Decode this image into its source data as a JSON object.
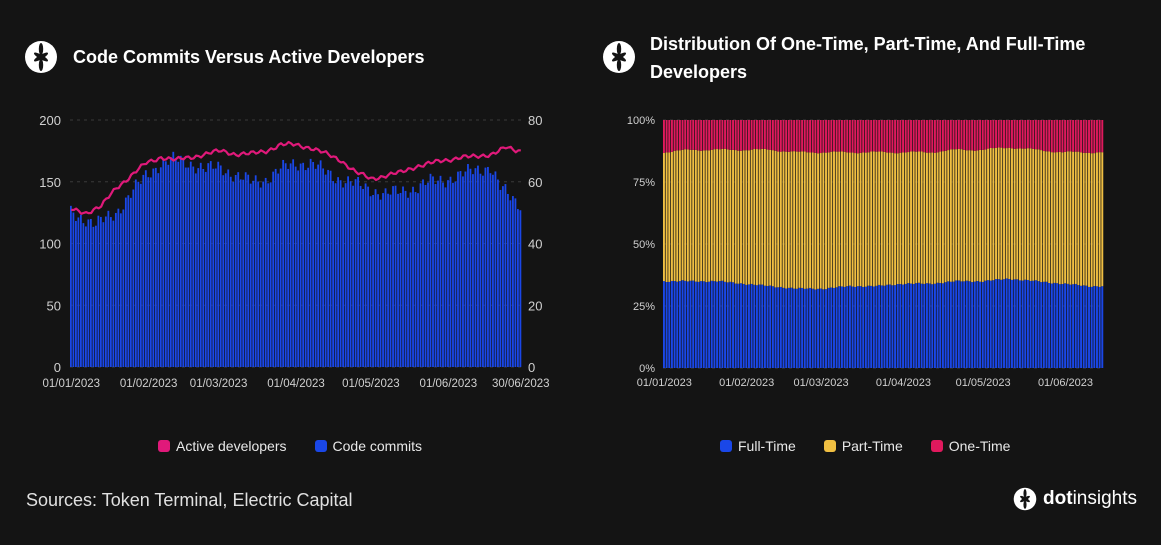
{
  "footer": {
    "sources": "Sources: Token Terminal, Electric Capital"
  },
  "brand": {
    "bold": "dot",
    "light": "insights"
  },
  "colors": {
    "background": "#141414",
    "commits": "#1a47e8",
    "active": "#e0197a",
    "full_time": "#1a47e8",
    "part_time": "#f0bf42",
    "one_time": "#e0195d",
    "grid": "#3a3a3a",
    "tick": "#d0d0d0"
  },
  "left": {
    "title": "Code Commits Versus Active Developers",
    "legend": [
      {
        "label": "Active developers",
        "color": "#e0197a"
      },
      {
        "label": "Code commits",
        "color": "#1a47e8"
      }
    ]
  },
  "right": {
    "title_line1": "Distribution Of One-Time, Part-Time, And Full-Time",
    "title_line2": "Developers",
    "legend": [
      {
        "label": "Full-Time",
        "color": "#1a47e8"
      },
      {
        "label": "Part-Time",
        "color": "#f0bf42"
      },
      {
        "label": "One-Time",
        "color": "#e0195d"
      }
    ]
  },
  "chart_data": [
    {
      "type": "bar",
      "title": "Code Commits Versus Active Developers",
      "x_ticks": [
        "01/01/2023",
        "01/02/2023",
        "01/03/2023",
        "01/04/2023",
        "01/05/2023",
        "01/06/2023",
        "30/06/2023"
      ],
      "y_left_ticks": [
        "0",
        "50",
        "100",
        "150",
        "200"
      ],
      "y_right_ticks": [
        "0",
        "20",
        "40",
        "60",
        "80"
      ],
      "ylim_left": [
        0,
        200
      ],
      "ylim_right": [
        0,
        80
      ],
      "x_range": [
        "01/01/2023",
        "30/06/2023"
      ],
      "grid": true,
      "legend_position": "bottom",
      "commits_anchors": [
        [
          0,
          125
        ],
        [
          6,
          120
        ],
        [
          10,
          115
        ],
        [
          14,
          120
        ],
        [
          18,
          125
        ],
        [
          24,
          140
        ],
        [
          30,
          155
        ],
        [
          36,
          165
        ],
        [
          42,
          168
        ],
        [
          48,
          165
        ],
        [
          54,
          160
        ],
        [
          60,
          162
        ],
        [
          66,
          155
        ],
        [
          72,
          150
        ],
        [
          78,
          152
        ],
        [
          84,
          160
        ],
        [
          90,
          165
        ],
        [
          96,
          165
        ],
        [
          102,
          158
        ],
        [
          108,
          152
        ],
        [
          114,
          148
        ],
        [
          120,
          144
        ],
        [
          126,
          140
        ],
        [
          132,
          142
        ],
        [
          138,
          145
        ],
        [
          144,
          150
        ],
        [
          150,
          152
        ],
        [
          156,
          155
        ],
        [
          162,
          160
        ],
        [
          168,
          162
        ],
        [
          172,
          145
        ],
        [
          176,
          138
        ],
        [
          180,
          132
        ]
      ],
      "active_anchors": [
        [
          0,
          51
        ],
        [
          6,
          50
        ],
        [
          12,
          52
        ],
        [
          18,
          58
        ],
        [
          24,
          62
        ],
        [
          30,
          66
        ],
        [
          36,
          68
        ],
        [
          42,
          67
        ],
        [
          48,
          68
        ],
        [
          54,
          69
        ],
        [
          60,
          70
        ],
        [
          66,
          69
        ],
        [
          72,
          69
        ],
        [
          78,
          70
        ],
        [
          84,
          72
        ],
        [
          90,
          72
        ],
        [
          96,
          71
        ],
        [
          102,
          69
        ],
        [
          108,
          67
        ],
        [
          114,
          63
        ],
        [
          120,
          61
        ],
        [
          126,
          62
        ],
        [
          132,
          63
        ],
        [
          138,
          65
        ],
        [
          144,
          66
        ],
        [
          150,
          67
        ],
        [
          156,
          68
        ],
        [
          162,
          68
        ],
        [
          168,
          69
        ],
        [
          174,
          71
        ],
        [
          178,
          70
        ],
        [
          180,
          70
        ]
      ]
    },
    {
      "type": "bar",
      "stacked": true,
      "title": "Distribution Of One-Time, Part-Time, And Full-Time Developers",
      "x_ticks": [
        "01/01/2023",
        "01/02/2023",
        "01/03/2023",
        "01/04/2023",
        "01/05/2023",
        "01/06/2023"
      ],
      "y_ticks": [
        "0%",
        "25%",
        "50%",
        "75%",
        "100%"
      ],
      "ylim": [
        0,
        100
      ],
      "grid": true,
      "legend_position": "bottom",
      "full_time_anchors": [
        [
          0,
          35
        ],
        [
          10,
          35
        ],
        [
          20,
          35
        ],
        [
          30,
          34
        ],
        [
          40,
          33
        ],
        [
          50,
          32
        ],
        [
          60,
          32
        ],
        [
          70,
          33
        ],
        [
          80,
          33
        ],
        [
          90,
          34
        ],
        [
          100,
          34
        ],
        [
          110,
          35
        ],
        [
          120,
          35
        ],
        [
          130,
          36
        ],
        [
          140,
          35
        ],
        [
          150,
          34
        ],
        [
          160,
          33
        ],
        [
          165,
          33
        ]
      ],
      "part_time_anchors": [
        [
          0,
          52
        ],
        [
          10,
          53
        ],
        [
          20,
          53
        ],
        [
          30,
          54
        ],
        [
          40,
          55
        ],
        [
          50,
          55
        ],
        [
          60,
          55
        ],
        [
          70,
          54
        ],
        [
          80,
          54
        ],
        [
          90,
          53
        ],
        [
          100,
          53
        ],
        [
          110,
          53
        ],
        [
          120,
          53
        ],
        [
          130,
          53
        ],
        [
          140,
          53
        ],
        [
          150,
          53
        ],
        [
          160,
          54
        ],
        [
          165,
          54
        ]
      ]
    }
  ]
}
